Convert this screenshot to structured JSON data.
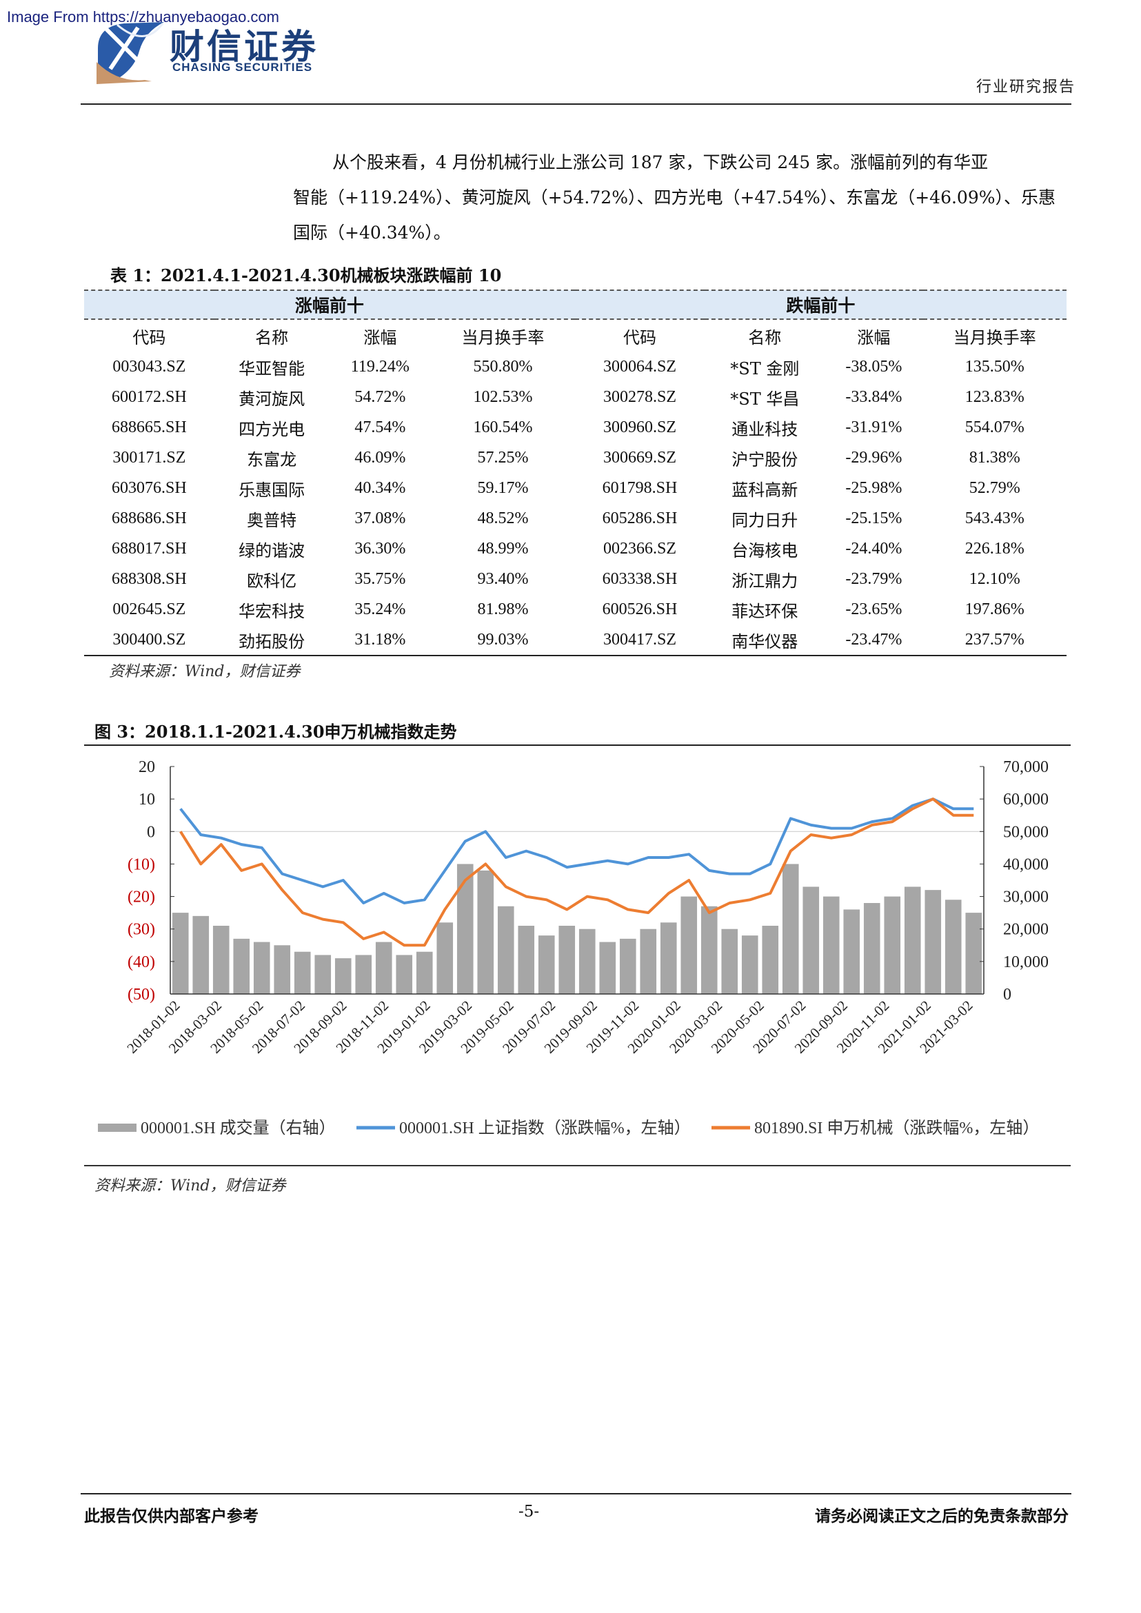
{
  "watermark": "Image From https://zhuanyebaogao.com",
  "header": {
    "logo_cn": "财信证券",
    "logo_en": "CHASING SECURITIES",
    "doc_type": "行业研究报告"
  },
  "paragraph": {
    "line1": "从个股来看，4 月份机械行业上涨公司 187 家，下跌公司 245 家。涨幅前列的有华亚",
    "line2": "智能（+119.24%）、黄河旋风（+54.72%）、四方光电（+47.54%）、东富龙（+46.09%）、乐惠",
    "line3": "国际（+40.34%）。"
  },
  "table": {
    "caption": "表 1：2021.4.1-2021.4.30机械板块涨跌幅前 10",
    "group_up": "涨幅前十",
    "group_down": "跌幅前十",
    "columns": [
      "代码",
      "名称",
      "涨幅",
      "当月换手率",
      "代码",
      "名称",
      "涨幅",
      "当月换手率"
    ],
    "rows": [
      [
        "003043.SZ",
        "华亚智能",
        "119.24%",
        "550.80%",
        "300064.SZ",
        "*ST 金刚",
        "-38.05%",
        "135.50%"
      ],
      [
        "600172.SH",
        "黄河旋风",
        "54.72%",
        "102.53%",
        "300278.SZ",
        "*ST 华昌",
        "-33.84%",
        "123.83%"
      ],
      [
        "688665.SH",
        "四方光电",
        "47.54%",
        "160.54%",
        "300960.SZ",
        "通业科技",
        "-31.91%",
        "554.07%"
      ],
      [
        "300171.SZ",
        "东富龙",
        "46.09%",
        "57.25%",
        "300669.SZ",
        "沪宁股份",
        "-29.96%",
        "81.38%"
      ],
      [
        "603076.SH",
        "乐惠国际",
        "40.34%",
        "59.17%",
        "601798.SH",
        "蓝科高新",
        "-25.98%",
        "52.79%"
      ],
      [
        "688686.SH",
        "奥普特",
        "37.08%",
        "48.52%",
        "605286.SH",
        "同力日升",
        "-25.15%",
        "543.43%"
      ],
      [
        "688017.SH",
        "绿的谐波",
        "36.30%",
        "48.99%",
        "002366.SZ",
        "台海核电",
        "-24.40%",
        "226.18%"
      ],
      [
        "688308.SH",
        "欧科亿",
        "35.75%",
        "93.40%",
        "603338.SH",
        "浙江鼎力",
        "-23.79%",
        "12.10%"
      ],
      [
        "002645.SZ",
        "华宏科技",
        "35.24%",
        "81.98%",
        "600526.SH",
        "菲达环保",
        "-23.65%",
        "197.86%"
      ],
      [
        "300400.SZ",
        "劲拓股份",
        "31.18%",
        "99.03%",
        "300417.SZ",
        "南华仪器",
        "-23.47%",
        "237.57%"
      ]
    ],
    "source": "资料来源：Wind，财信证券"
  },
  "figure": {
    "caption": "图 3：2018.1.1-2021.4.30申万机械指数走势",
    "source": "资料来源：Wind，财信证券"
  },
  "chart_data": {
    "type": "line",
    "left_axis": {
      "ticks": [
        "20",
        "10",
        "0",
        "(10)",
        "(20)",
        "(30)",
        "(40)",
        "(50)"
      ],
      "range": [
        -50,
        20
      ],
      "unit": "涨跌幅%"
    },
    "right_axis": {
      "ticks": [
        "70,000",
        "60,000",
        "50,000",
        "40,000",
        "30,000",
        "20,000",
        "10,000",
        "0"
      ],
      "range": [
        0,
        70000
      ]
    },
    "x_ticks": [
      "2018-01-02",
      "2018-03-02",
      "2018-05-02",
      "2018-07-02",
      "2018-09-02",
      "2018-11-02",
      "2019-01-02",
      "2019-03-02",
      "2019-05-02",
      "2019-07-02",
      "2019-09-02",
      "2019-11-02",
      "2020-01-02",
      "2020-03-02",
      "2020-05-02",
      "2020-07-02",
      "2020-09-02",
      "2020-11-02",
      "2021-01-02",
      "2021-03-02"
    ],
    "series": [
      {
        "name": "000001.SH 成交量（右轴）",
        "kind": "bar",
        "axis": "right",
        "color": "#a6a6a6",
        "x": [
          "2018-01",
          "2018-02",
          "2018-03",
          "2018-04",
          "2018-05",
          "2018-06",
          "2018-07",
          "2018-08",
          "2018-09",
          "2018-10",
          "2018-11",
          "2018-12",
          "2019-01",
          "2019-02",
          "2019-03",
          "2019-04",
          "2019-05",
          "2019-06",
          "2019-07",
          "2019-08",
          "2019-09",
          "2019-10",
          "2019-11",
          "2019-12",
          "2020-01",
          "2020-02",
          "2020-03",
          "2020-04",
          "2020-05",
          "2020-06",
          "2020-07",
          "2020-08",
          "2020-09",
          "2020-10",
          "2020-11",
          "2020-12",
          "2021-01",
          "2021-02",
          "2021-03",
          "2021-04"
        ],
        "values": [
          25000,
          24000,
          21000,
          17000,
          16000,
          15000,
          13000,
          12000,
          11000,
          12000,
          16000,
          12000,
          13000,
          22000,
          40000,
          38000,
          27000,
          21000,
          18000,
          21000,
          20000,
          16000,
          17000,
          20000,
          22000,
          30000,
          27000,
          20000,
          18000,
          21000,
          40000,
          33000,
          30000,
          26000,
          28000,
          30000,
          33000,
          32000,
          29000,
          25000
        ]
      },
      {
        "name": "000001.SH 上证指数（涨跌幅%，左轴）",
        "kind": "line",
        "axis": "left",
        "color": "#4f94d8",
        "x": [
          "2018-01",
          "2018-02",
          "2018-03",
          "2018-04",
          "2018-05",
          "2018-06",
          "2018-07",
          "2018-08",
          "2018-09",
          "2018-10",
          "2018-11",
          "2018-12",
          "2019-01",
          "2019-02",
          "2019-03",
          "2019-04",
          "2019-05",
          "2019-06",
          "2019-07",
          "2019-08",
          "2019-09",
          "2019-10",
          "2019-11",
          "2019-12",
          "2020-01",
          "2020-02",
          "2020-03",
          "2020-04",
          "2020-05",
          "2020-06",
          "2020-07",
          "2020-08",
          "2020-09",
          "2020-10",
          "2020-11",
          "2020-12",
          "2021-01",
          "2021-02",
          "2021-03",
          "2021-04"
        ],
        "values": [
          7,
          -1,
          -2,
          -4,
          -5,
          -13,
          -15,
          -17,
          -15,
          -22,
          -19,
          -22,
          -21,
          -12,
          -3,
          0,
          -8,
          -6,
          -8,
          -11,
          -10,
          -9,
          -10,
          -8,
          -8,
          -7,
          -12,
          -13,
          -13,
          -10,
          4,
          2,
          1,
          1,
          3,
          4,
          8,
          10,
          7,
          7
        ]
      },
      {
        "name": "801890.SI 申万机械（涨跌幅%，左轴）",
        "kind": "line",
        "axis": "left",
        "color": "#ed7d31",
        "x": [
          "2018-01",
          "2018-02",
          "2018-03",
          "2018-04",
          "2018-05",
          "2018-06",
          "2018-07",
          "2018-08",
          "2018-09",
          "2018-10",
          "2018-11",
          "2018-12",
          "2019-01",
          "2019-02",
          "2019-03",
          "2019-04",
          "2019-05",
          "2019-06",
          "2019-07",
          "2019-08",
          "2019-09",
          "2019-10",
          "2019-11",
          "2019-12",
          "2020-01",
          "2020-02",
          "2020-03",
          "2020-04",
          "2020-05",
          "2020-06",
          "2020-07",
          "2020-08",
          "2020-09",
          "2020-10",
          "2020-11",
          "2020-12",
          "2021-01",
          "2021-02",
          "2021-03",
          "2021-04"
        ],
        "values": [
          0,
          -10,
          -4,
          -12,
          -10,
          -18,
          -25,
          -27,
          -28,
          -33,
          -31,
          -35,
          -35,
          -24,
          -15,
          -10,
          -17,
          -20,
          -21,
          -24,
          -20,
          -21,
          -24,
          -25,
          -19,
          -15,
          -25,
          -22,
          -21,
          -19,
          -6,
          -1,
          -2,
          -1,
          2,
          3,
          7,
          10,
          5,
          5
        ]
      }
    ],
    "legend_position": "bottom",
    "grid": false
  },
  "footer": {
    "left": "此报告仅供内部客户参考",
    "center": "-5-",
    "right": "请务必阅读正文之后的免责条款部分"
  }
}
